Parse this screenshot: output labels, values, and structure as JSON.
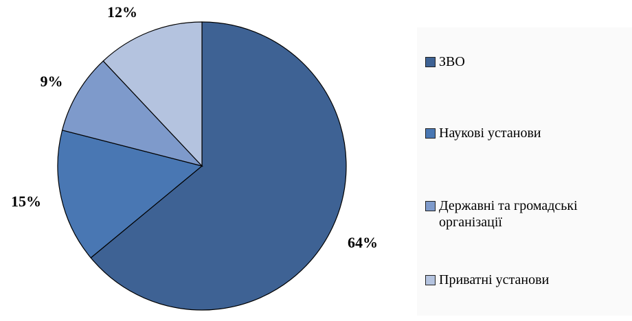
{
  "chart_data": {
    "type": "pie",
    "categories": [
      "ЗВО",
      "Наукові установи",
      "Державні та громадські організації",
      "Приватні установи"
    ],
    "values": [
      64,
      15,
      9,
      12
    ],
    "value_labels": [
      "64%",
      "15%",
      "9%",
      "12%"
    ],
    "colors": [
      "#3e6294",
      "#4977b3",
      "#7e9acb",
      "#b4c3df"
    ]
  }
}
